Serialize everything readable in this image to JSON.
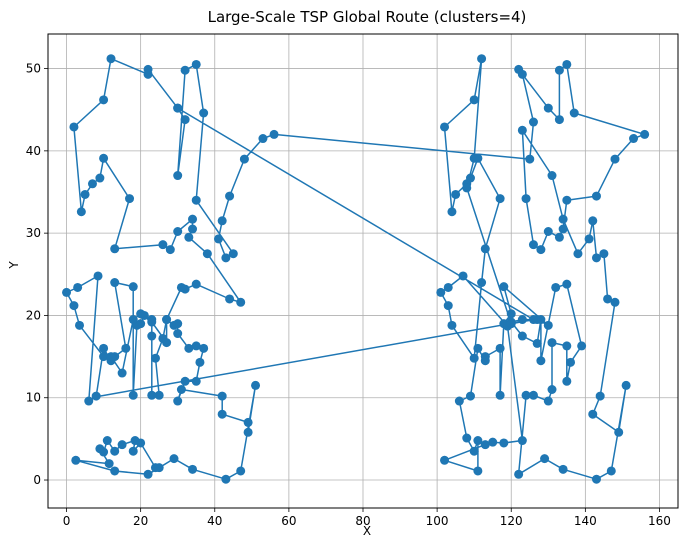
{
  "chart_data": {
    "type": "line",
    "title": "Large-Scale TSP Global Route (clusters=4)",
    "xlabel": "X",
    "ylabel": "Y",
    "xlim": [
      -5,
      165
    ],
    "ylim": [
      -3.4,
      54.2
    ],
    "xticks": [
      0,
      20,
      40,
      60,
      80,
      100,
      120,
      140,
      160
    ],
    "yticks": [
      0,
      10,
      20,
      30,
      40,
      50
    ],
    "grid": true,
    "color": "#1f77b4",
    "series": [
      {
        "route": [
          [
            24,
            1.5
          ],
          [
            20,
            4.5
          ],
          [
            18,
            3.5
          ],
          [
            18.5,
            4.8
          ],
          [
            15,
            4.3
          ],
          [
            13,
            3.5
          ],
          [
            11,
            4.8
          ],
          [
            10,
            3.4
          ],
          [
            9,
            3.8
          ],
          [
            11.5,
            2
          ],
          [
            2.5,
            2.4
          ],
          [
            13,
            1.1
          ],
          [
            22,
            0.7
          ],
          [
            25,
            1.5
          ],
          [
            29,
            2.6
          ],
          [
            34,
            1.3
          ],
          [
            43,
            0.1
          ],
          [
            47,
            1.1
          ],
          [
            51,
            11.5
          ],
          [
            49,
            5.8
          ],
          [
            49,
            7
          ],
          [
            42,
            8
          ],
          [
            42,
            10.2
          ],
          [
            31,
            11
          ],
          [
            30,
            9.6
          ],
          [
            32,
            12
          ],
          [
            35,
            12
          ],
          [
            36,
            14.3
          ],
          [
            37,
            16
          ],
          [
            35,
            16.3
          ],
          [
            33,
            16
          ],
          [
            30,
            17.8
          ],
          [
            30,
            19
          ],
          [
            29,
            18.8
          ],
          [
            27,
            19.5
          ],
          [
            26,
            17.2
          ],
          [
            24,
            14.8
          ],
          [
            25,
            10.3
          ],
          [
            23,
            10.3
          ],
          [
            23,
            17.5
          ],
          [
            23,
            19.5
          ],
          [
            21,
            20
          ],
          [
            20,
            19
          ],
          [
            19,
            18.8
          ],
          [
            18,
            10.3
          ],
          [
            18,
            23.5
          ],
          [
            13,
            24
          ],
          [
            16,
            16
          ],
          [
            13,
            15
          ],
          [
            12,
            14.5
          ],
          [
            10,
            16
          ],
          [
            8,
            10.2
          ],
          [
            6,
            9.6
          ],
          [
            8.5,
            24.8
          ],
          [
            3,
            23.4
          ],
          [
            0,
            22.8
          ],
          [
            2,
            21.2
          ],
          [
            3.5,
            18.8
          ],
          [
            10,
            15
          ],
          [
            12,
            15
          ],
          [
            15,
            13
          ],
          [
            18,
            19.5
          ],
          [
            20,
            20.2
          ],
          [
            23,
            19.2
          ],
          [
            27,
            16.7
          ],
          [
            27,
            19.5
          ],
          [
            31,
            23.4
          ],
          [
            32,
            23.2
          ],
          [
            35,
            23.8
          ],
          [
            44,
            22
          ],
          [
            47,
            21.6
          ],
          [
            38,
            27.5
          ],
          [
            33,
            29.5
          ],
          [
            34,
            30.5
          ],
          [
            34,
            31.7
          ],
          [
            30,
            30.2
          ],
          [
            28,
            28
          ],
          [
            26,
            28.6
          ],
          [
            13,
            28.1
          ],
          [
            17,
            34.2
          ],
          [
            10,
            39.1
          ],
          [
            9,
            36.7
          ],
          [
            7,
            36
          ],
          [
            5,
            34.7
          ],
          [
            4,
            32.6
          ],
          [
            2,
            42.9
          ],
          [
            10,
            46.2
          ],
          [
            12,
            51.2
          ],
          [
            22,
            49.3
          ],
          [
            22,
            49.9
          ],
          [
            30,
            45.2
          ],
          [
            32,
            43.8
          ],
          [
            30,
            37
          ],
          [
            32,
            49.8
          ],
          [
            35,
            50.5
          ],
          [
            37,
            44.6
          ],
          [
            35,
            34
          ],
          [
            45,
            27.5
          ],
          [
            43,
            27
          ],
          [
            41,
            29.3
          ],
          [
            42,
            31.5
          ],
          [
            44,
            34.5
          ],
          [
            48,
            39
          ],
          [
            53,
            41.5
          ],
          [
            56,
            42
          ],
          [
            125,
            39
          ],
          [
            126,
            43.5
          ],
          [
            123,
            49.3
          ],
          [
            122,
            49.9
          ],
          [
            130,
            45.2
          ],
          [
            133,
            43.8
          ],
          [
            133,
            49.8
          ],
          [
            135,
            50.5
          ],
          [
            137,
            44.6
          ],
          [
            156,
            42
          ],
          [
            153,
            41.5
          ],
          [
            148,
            39
          ],
          [
            143,
            34.5
          ],
          [
            135,
            34
          ],
          [
            134,
            30.5
          ],
          [
            133,
            29.5
          ],
          [
            130,
            30.2
          ],
          [
            128,
            28
          ],
          [
            126,
            28.6
          ],
          [
            124,
            34.2
          ],
          [
            123,
            42.5
          ],
          [
            131,
            37
          ],
          [
            134,
            31.7
          ],
          [
            138,
            27.5
          ],
          [
            141,
            29.3
          ],
          [
            142,
            31.5
          ],
          [
            143,
            27
          ],
          [
            145,
            27.5
          ],
          [
            146,
            22
          ],
          [
            148,
            21.6
          ],
          [
            144,
            10.2
          ],
          [
            142,
            8
          ],
          [
            149,
            5.8
          ],
          [
            151,
            11.5
          ],
          [
            147,
            1.1
          ],
          [
            143,
            0.1
          ],
          [
            134,
            1.3
          ],
          [
            129,
            2.6
          ],
          [
            122,
            0.7
          ],
          [
            124,
            10.3
          ],
          [
            126,
            10.3
          ],
          [
            130,
            9.6
          ],
          [
            131,
            11
          ],
          [
            131,
            16.7
          ],
          [
            135,
            16.3
          ],
          [
            135,
            12
          ],
          [
            136,
            14.3
          ],
          [
            139,
            16.3
          ],
          [
            135,
            23.8
          ],
          [
            132,
            23.4
          ],
          [
            128,
            14.5
          ],
          [
            128,
            19.5
          ],
          [
            127,
            16.6
          ],
          [
            123,
            17.5
          ],
          [
            120,
            19.2
          ],
          [
            123,
            19.5
          ],
          [
            127,
            19.5
          ],
          [
            130,
            18.8
          ],
          [
            118,
            23.5
          ],
          [
            120,
            20.2
          ],
          [
            118,
            19
          ],
          [
            117,
            10.3
          ],
          [
            117,
            16
          ],
          [
            113,
            15
          ],
          [
            113,
            14.5
          ],
          [
            111,
            16
          ],
          [
            109,
            10.2
          ],
          [
            106,
            9.6
          ],
          [
            108,
            5.1
          ],
          [
            110,
            3.5
          ],
          [
            111,
            4.8
          ],
          [
            111,
            1.1
          ],
          [
            102,
            2.4
          ],
          [
            113,
            4.3
          ],
          [
            115,
            4.6
          ],
          [
            118,
            4.5
          ],
          [
            123,
            4.8
          ],
          [
            119,
            18.7
          ],
          [
            107,
            24.8
          ],
          [
            103,
            23.4
          ],
          [
            101,
            22.8
          ],
          [
            103,
            21.2
          ],
          [
            104,
            18.8
          ],
          [
            110,
            14.8
          ],
          [
            112,
            24
          ],
          [
            113,
            28.1
          ],
          [
            117,
            34.2
          ],
          [
            111,
            39.1
          ],
          [
            109,
            36.7
          ],
          [
            108,
            36
          ],
          [
            105,
            34.7
          ],
          [
            104,
            32.6
          ],
          [
            102,
            42.9
          ],
          [
            110,
            46.2
          ],
          [
            112,
            51.2
          ],
          [
            110,
            39.1
          ],
          [
            108,
            35.5
          ],
          [
            120,
            19
          ],
          [
            126,
            19.5
          ],
          [
            30,
            45.2
          ]
        ]
      }
    ],
    "closing_segment": [
      [
        9,
        10.2
      ],
      [
        126,
        19.5
      ]
    ]
  }
}
